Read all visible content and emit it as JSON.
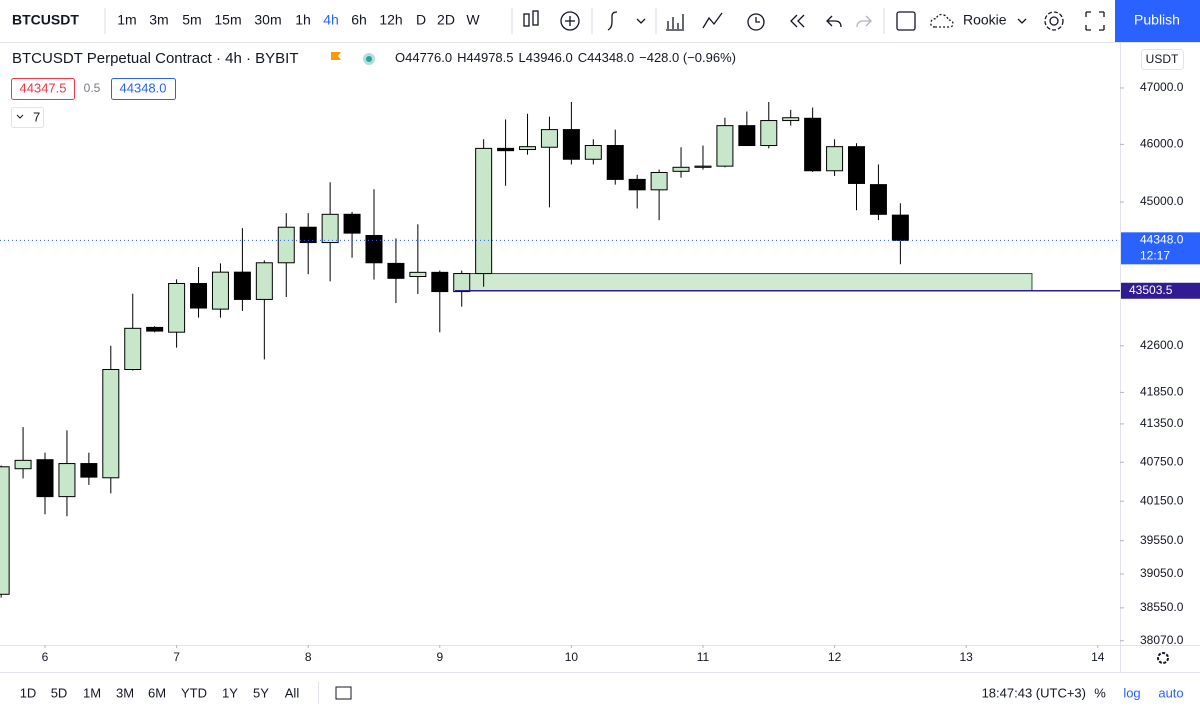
{
  "toolbar": {
    "symbol": "BTCUSDT",
    "intervals": [
      "1m",
      "3m",
      "5m",
      "15m",
      "30m",
      "1h",
      "4h",
      "6h",
      "12h",
      "D",
      "2D",
      "W"
    ],
    "active_interval": 6,
    "layout_name": "Rookie",
    "publish": "Publish"
  },
  "header": {
    "title": "BTCUSDT Perpetual Contract · 4h · BYBIT",
    "ohlc": [
      "O44776.0",
      "H44978.5",
      "L43946.0",
      "C44348.0",
      "−428.0 (−0.96%)"
    ],
    "sell": "44347.5",
    "spread": "0.5",
    "buy": "44348.0",
    "indicators": "7",
    "currency": "USDT"
  },
  "chart_data": {
    "type": "candlestick",
    "x": [
      5.6667,
      5.8333,
      6,
      6.1667,
      6.3333,
      6.5,
      6.6667,
      6.8333,
      7,
      7.1667,
      7.3333,
      7.5,
      7.6667,
      7.8333,
      8,
      8.1667,
      8.3333,
      8.5,
      8.6667,
      8.8333,
      9,
      9.1667,
      9.3333,
      9.5,
      9.6667,
      9.8333,
      10,
      10.1667,
      10.3333,
      10.5,
      10.6667,
      10.8333,
      11,
      11.1667,
      11.3333,
      11.5,
      11.6667,
      11.8333,
      12,
      12.1667,
      12.3333,
      12.5
    ],
    "open": [
      38750,
      40650,
      40790,
      40220,
      40730,
      40510,
      42217,
      42900,
      42822,
      43624,
      43200,
      43813,
      43360,
      43970,
      44570,
      44310,
      44790,
      44430,
      43960,
      43740,
      43810,
      43490,
      43790,
      45930,
      45910,
      45950,
      46260,
      45740,
      45980,
      45390,
      45210,
      45530,
      45600,
      45620,
      46330,
      45980,
      46420,
      46460,
      45540,
      45960,
      45300,
      44776
    ],
    "high": [
      40700,
      41300,
      40900,
      41250,
      40900,
      42600,
      43455,
      42920,
      43693,
      43900,
      43960,
      44554,
      44010,
      44810,
      44810,
      45340,
      44830,
      45220,
      44380,
      44620,
      43840,
      43840,
      46090,
      46440,
      46540,
      46490,
      46750,
      46090,
      46260,
      45470,
      45560,
      45950,
      45980,
      46470,
      46580,
      46750,
      46610,
      46650,
      46090,
      46020,
      45650,
      44978.5
    ],
    "low": [
      38700,
      40500,
      39950,
      39920,
      40400,
      40270,
      42200,
      42820,
      42570,
      43060,
      43060,
      43170,
      42380,
      43400,
      43780,
      43660,
      44055,
      43690,
      43300,
      43450,
      42820,
      43240,
      43570,
      45280,
      45820,
      44910,
      45650,
      45650,
      45300,
      44890,
      44690,
      45420,
      45560,
      45600,
      45980,
      45930,
      46330,
      45520,
      45450,
      44860,
      44690,
      43946
    ],
    "close": [
      40680,
      40780,
      40220,
      40730,
      40520,
      42217,
      42885,
      42840,
      43624,
      43218,
      43813,
      43360,
      43970,
      44570,
      44310,
      44790,
      44470,
      43970,
      43710,
      43810,
      43490,
      43790,
      45930,
      45890,
      45960,
      46260,
      45740,
      45980,
      45390,
      45210,
      45510,
      45600,
      45620,
      46330,
      45980,
      46420,
      46470,
      45540,
      45960,
      45320,
      44790,
      44348
    ],
    "up_color": "#c8e6c9",
    "down_color": "#000000",
    "xlim": [
      5.658,
      14.169
    ],
    "xticks": [
      6,
      7,
      8,
      9,
      10,
      11,
      12,
      13,
      14
    ],
    "ylim": [
      38008,
      47831
    ],
    "log_scale": true,
    "yticks": [
      {
        "value": 47000,
        "label": "47000.0"
      },
      {
        "value": 46000,
        "label": "46000.0"
      },
      {
        "value": 45000,
        "label": "45000.0"
      },
      {
        "value": 42600,
        "label": "42600.0"
      },
      {
        "value": 41850,
        "label": "41850.0"
      },
      {
        "value": 41350,
        "label": "41350.0"
      },
      {
        "value": 40750,
        "label": "40750.0"
      },
      {
        "value": 40150,
        "label": "40150.0"
      },
      {
        "value": 39550,
        "label": "39550.0"
      },
      {
        "value": 39050,
        "label": "39050.0"
      },
      {
        "value": 38550,
        "label": "38550.0"
      },
      {
        "value": 38070,
        "label": "38070.0"
      }
    ],
    "last_price": {
      "value": 44348,
      "label": "44348.0"
    },
    "countdown": "12:17",
    "hline": {
      "value": 43503.5,
      "label": "43503.5"
    },
    "zone": {
      "x": [
        9.1155,
        13.5
      ],
      "y": [
        43503.5,
        43790
      ]
    }
  },
  "footer": {
    "ranges": [
      "1D",
      "5D",
      "1M",
      "3M",
      "6M",
      "YTD",
      "1Y",
      "5Y",
      "All"
    ],
    "clock": "18:47:43 (UTC+3)",
    "percent": "%",
    "log": "log",
    "auto": "auto"
  }
}
